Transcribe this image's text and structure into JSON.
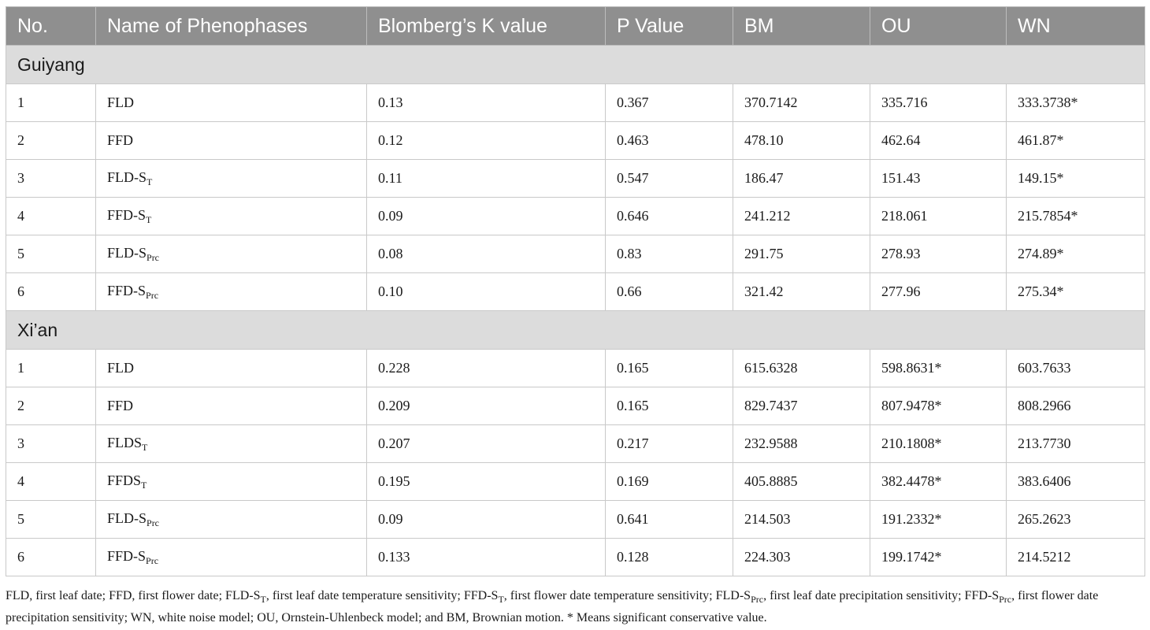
{
  "table": {
    "headers": [
      "No.",
      "Name of Phenophases",
      "Blomberg’s K value",
      "P Value",
      "BM",
      "OU",
      "WN"
    ],
    "groups": [
      {
        "label": "Guiyang",
        "rows": [
          {
            "no": "1",
            "base": "FLD",
            "sub": "",
            "k": "0.13",
            "p": "0.367",
            "bm": "370.7142",
            "ou": "335.716",
            "wn": "333.3738*"
          },
          {
            "no": "2",
            "base": "FFD",
            "sub": "",
            "k": "0.12",
            "p": "0.463",
            "bm": "478.10",
            "ou": "462.64",
            "wn": "461.87*"
          },
          {
            "no": "3",
            "base": "FLD-S",
            "sub": "T",
            "k": "0.11",
            "p": "0.547",
            "bm": "186.47",
            "ou": "151.43",
            "wn": "149.15*"
          },
          {
            "no": "4",
            "base": "FFD-S",
            "sub": "T",
            "k": "0.09",
            "p": "0.646",
            "bm": "241.212",
            "ou": "218.061",
            "wn": "215.7854*"
          },
          {
            "no": "5",
            "base": "FLD-S",
            "sub": "Prc",
            "k": "0.08",
            "p": "0.83",
            "bm": "291.75",
            "ou": "278.93",
            "wn": "274.89*"
          },
          {
            "no": "6",
            "base": "FFD-S",
            "sub": "Prc",
            "k": "0.10",
            "p": "0.66",
            "bm": "321.42",
            "ou": "277.96",
            "wn": "275.34*"
          }
        ]
      },
      {
        "label": "Xi’an",
        "rows": [
          {
            "no": "1",
            "base": "FLD",
            "sub": "",
            "k": "0.228",
            "p": "0.165",
            "bm": "615.6328",
            "ou": "598.8631*",
            "wn": "603.7633"
          },
          {
            "no": "2",
            "base": "FFD",
            "sub": "",
            "k": "0.209",
            "p": "0.165",
            "bm": "829.7437",
            "ou": "807.9478*",
            "wn": "808.2966"
          },
          {
            "no": "3",
            "base": "FLDS",
            "sub": "T",
            "k": "0.207",
            "p": "0.217",
            "bm": "232.9588",
            "ou": "210.1808*",
            "wn": "213.7730"
          },
          {
            "no": "4",
            "base": "FFDS",
            "sub": "T",
            "k": "0.195",
            "p": "0.169",
            "bm": "405.8885",
            "ou": "382.4478*",
            "wn": "383.6406"
          },
          {
            "no": "5",
            "base": "FLD-S",
            "sub": "Prc",
            "k": "0.09",
            "p": "0.641",
            "bm": "214.503",
            "ou": "191.2332*",
            "wn": "265.2623"
          },
          {
            "no": "6",
            "base": "FFD-S",
            "sub": "Prc",
            "k": "0.133",
            "p": "0.128",
            "bm": "224.303",
            "ou": "199.1742*",
            "wn": "214.5212"
          }
        ]
      }
    ]
  },
  "footnote": {
    "parts": [
      "FLD, first leaf date; FFD, first flower date; FLD-S",
      "T",
      ", first leaf date temperature sensitivity; FFD-S",
      "T",
      ", first flower date temperature sensitivity; FLD-S",
      "Prc",
      ", first leaf date precipitation sensitivity; FFD-S",
      "Prc",
      ", first flower date precipitation sensitivity; WN, white noise model; OU, Ornstein-Uhlenbeck model; and BM, Brownian motion. * Means significant conservative value."
    ]
  }
}
